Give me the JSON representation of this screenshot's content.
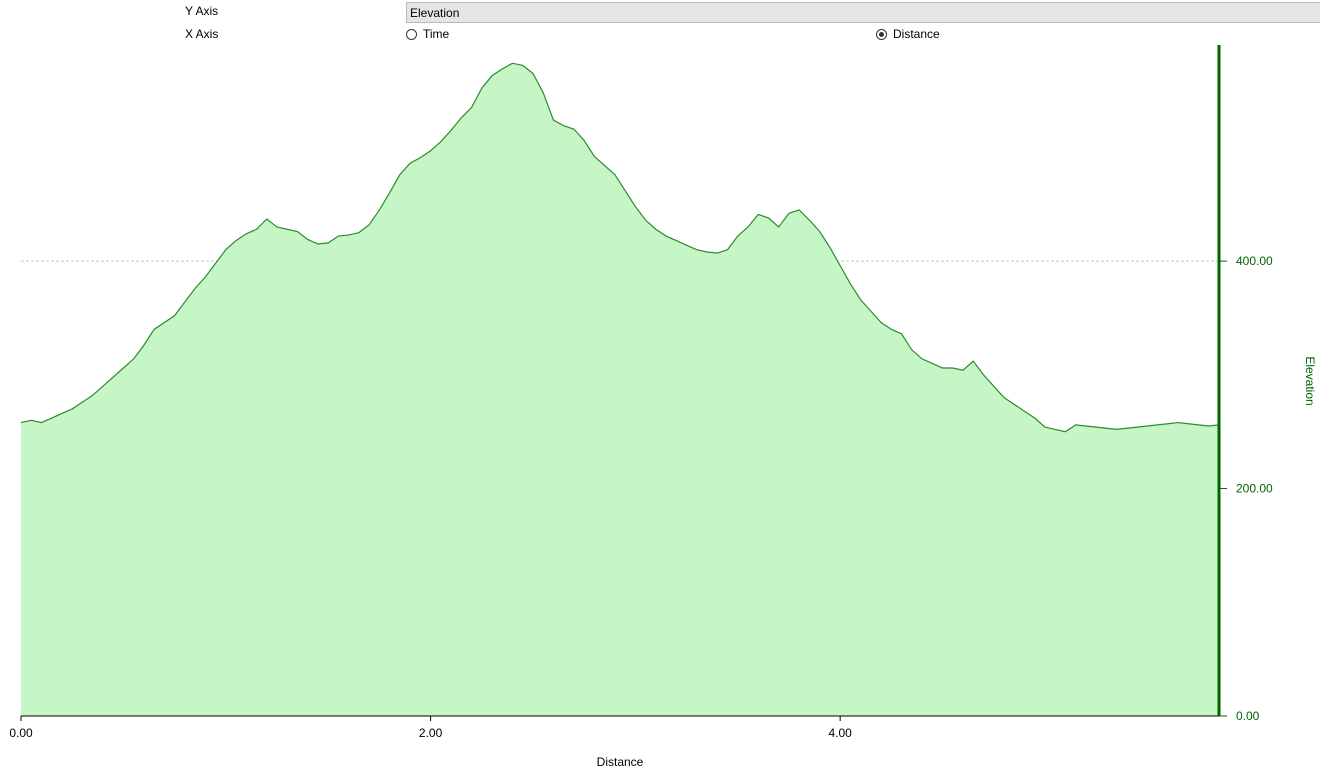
{
  "controls": {
    "y_axis_label": "Y Axis",
    "y_axis_selected": "Elevation",
    "x_axis_label": "X Axis",
    "x_axis_options": [
      {
        "label": "Time",
        "selected": false
      },
      {
        "label": "Distance",
        "selected": true
      }
    ]
  },
  "colors": {
    "line": "#2e8b2e",
    "fill": "#c6f5c6",
    "axis": "#006400",
    "grid": "#c8c8c8"
  },
  "chart_data": {
    "type": "area",
    "xlabel": "Distance",
    "ylabel": "Elevation",
    "xlim": [
      0,
      5.85
    ],
    "ylim": [
      0,
      590
    ],
    "x_ticks": [
      0,
      2,
      4
    ],
    "x_tick_labels": [
      "0.00",
      "2.00",
      "4.00"
    ],
    "y_ticks": [
      0,
      200,
      400
    ],
    "y_tick_labels": [
      "0.00",
      "200.00",
      "400.00"
    ],
    "grid": true,
    "y_axis_side": "right",
    "x": [
      0.0,
      0.05,
      0.1,
      0.15,
      0.2,
      0.25,
      0.3,
      0.35,
      0.4,
      0.45,
      0.5,
      0.55,
      0.6,
      0.65,
      0.7,
      0.75,
      0.8,
      0.85,
      0.9,
      0.95,
      1.0,
      1.05,
      1.1,
      1.15,
      1.2,
      1.25,
      1.3,
      1.35,
      1.4,
      1.45,
      1.5,
      1.55,
      1.6,
      1.65,
      1.7,
      1.75,
      1.8,
      1.85,
      1.9,
      1.95,
      2.0,
      2.05,
      2.1,
      2.15,
      2.2,
      2.25,
      2.3,
      2.35,
      2.4,
      2.45,
      2.5,
      2.55,
      2.6,
      2.65,
      2.7,
      2.75,
      2.8,
      2.85,
      2.9,
      2.95,
      3.0,
      3.05,
      3.1,
      3.15,
      3.2,
      3.25,
      3.3,
      3.35,
      3.4,
      3.45,
      3.5,
      3.55,
      3.6,
      3.65,
      3.7,
      3.75,
      3.8,
      3.85,
      3.9,
      3.95,
      4.0,
      4.05,
      4.1,
      4.15,
      4.2,
      4.25,
      4.3,
      4.35,
      4.4,
      4.45,
      4.5,
      4.55,
      4.6,
      4.65,
      4.7,
      4.75,
      4.8,
      4.85,
      4.9,
      4.95,
      5.0,
      5.05,
      5.1,
      5.15,
      5.2,
      5.25,
      5.3,
      5.35,
      5.4,
      5.45,
      5.5,
      5.55,
      5.6,
      5.65,
      5.7,
      5.75,
      5.8,
      5.85
    ],
    "y": [
      258,
      260,
      258,
      262,
      266,
      270,
      276,
      282,
      290,
      298,
      306,
      314,
      326,
      340,
      346,
      352,
      364,
      376,
      386,
      398,
      410,
      418,
      424,
      428,
      437,
      430,
      428,
      426,
      419,
      415,
      416,
      422,
      423,
      425,
      432,
      445,
      460,
      476,
      486,
      491,
      497,
      505,
      515,
      526,
      535,
      552,
      563,
      569,
      574,
      572,
      565,
      548,
      524,
      519,
      516,
      506,
      492,
      484,
      476,
      462,
      448,
      436,
      428,
      422,
      418,
      414,
      410,
      408,
      407,
      410,
      422,
      430,
      441,
      438,
      430,
      442,
      445,
      436,
      426,
      412,
      396,
      380,
      366,
      356,
      346,
      340,
      336,
      322,
      314,
      310,
      306,
      306,
      304,
      312,
      300,
      290,
      280,
      274,
      268,
      262,
      254,
      252,
      250,
      256,
      255,
      254,
      253,
      252,
      253,
      254,
      255,
      256,
      257,
      258,
      257,
      256,
      255,
      256
    ]
  }
}
